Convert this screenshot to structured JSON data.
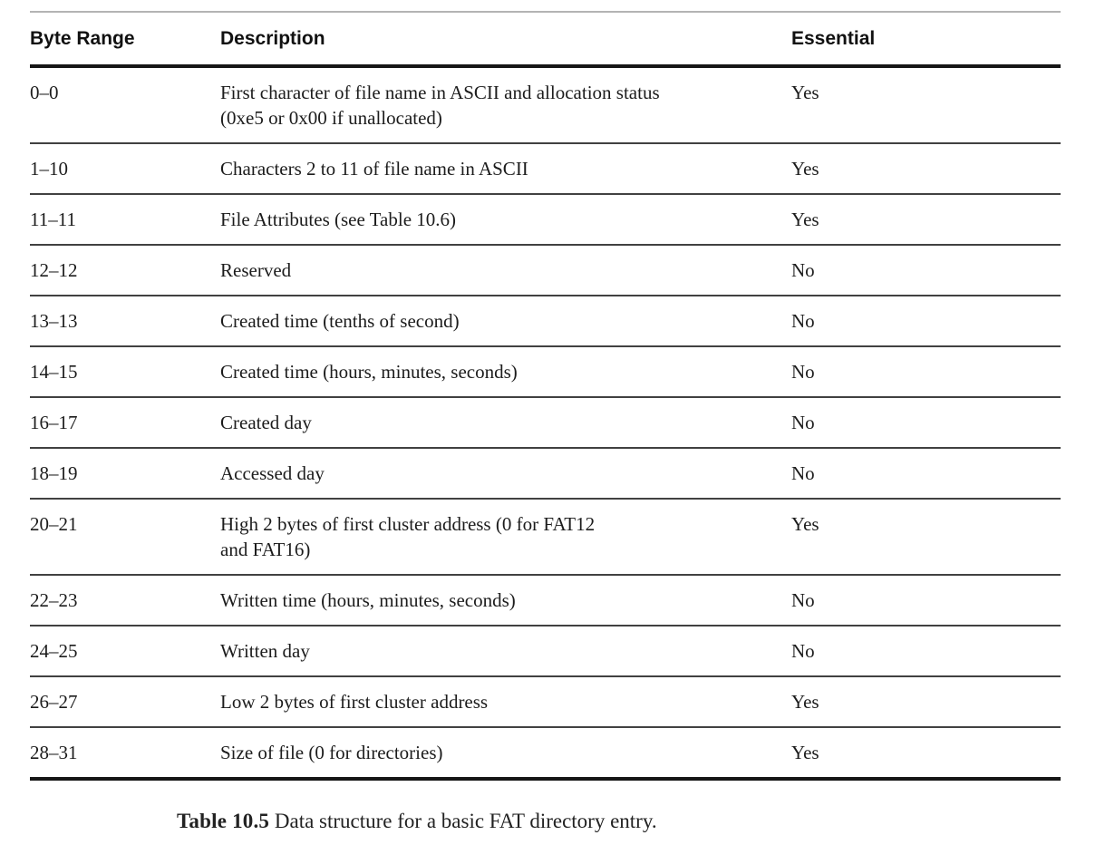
{
  "table": {
    "columns": [
      "Byte Range",
      "Description",
      "Essential"
    ],
    "rows": [
      {
        "byte_range": "0–0",
        "description": "First character of file name in ASCII and allocation status\n(0xe5 or 0x00 if unallocated)",
        "essential": "Yes"
      },
      {
        "byte_range": "1–10",
        "description": "Characters 2 to 11 of file name in ASCII",
        "essential": "Yes"
      },
      {
        "byte_range": "11–11",
        "description": "File Attributes (see Table 10.6)",
        "essential": "Yes"
      },
      {
        "byte_range": "12–12",
        "description": "Reserved",
        "essential": "No"
      },
      {
        "byte_range": "13–13",
        "description": "Created time (tenths of second)",
        "essential": "No"
      },
      {
        "byte_range": "14–15",
        "description": "Created time (hours, minutes, seconds)",
        "essential": "No"
      },
      {
        "byte_range": "16–17",
        "description": "Created day",
        "essential": "No"
      },
      {
        "byte_range": "18–19",
        "description": "Accessed day",
        "essential": "No"
      },
      {
        "byte_range": "20–21",
        "description": "High 2 bytes of first cluster address (0 for FAT12\nand FAT16)",
        "essential": "Yes"
      },
      {
        "byte_range": "22–23",
        "description": "Written time (hours, minutes, seconds)",
        "essential": "No"
      },
      {
        "byte_range": "24–25",
        "description": "Written day",
        "essential": "No"
      },
      {
        "byte_range": "26–27",
        "description": "Low 2 bytes of first cluster address",
        "essential": "Yes"
      },
      {
        "byte_range": "28–31",
        "description": "Size of file (0 for directories)",
        "essential": "Yes"
      }
    ]
  },
  "caption": {
    "label": "Table 10.5",
    "text": " Data structure for a basic FAT directory entry."
  },
  "colors": {
    "background": "#ffffff",
    "text": "#1c1c1c",
    "rule_heavy": "#161616",
    "rule_row": "#414141",
    "rule_top_light": "#b4b4b4"
  }
}
